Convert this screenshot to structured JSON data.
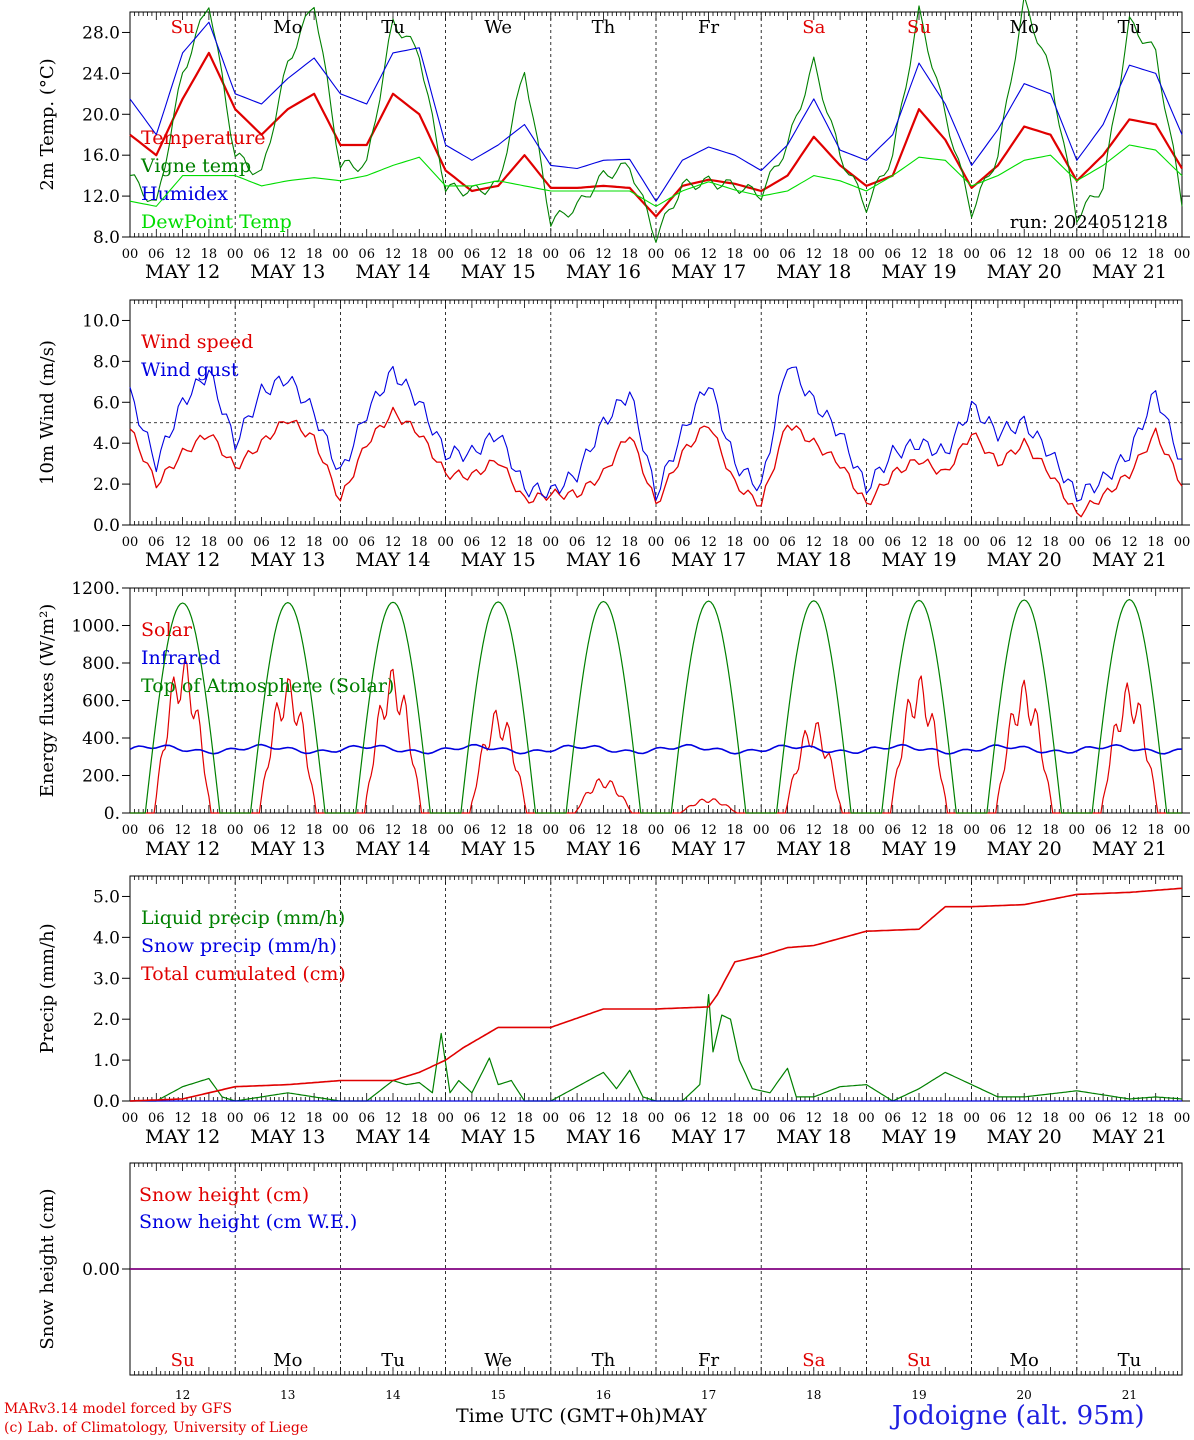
{
  "colors": {
    "red": "#e00000",
    "green": "#008000",
    "blue": "#0000e0",
    "lightgreen": "#00dd00",
    "purple": "#800080",
    "black": "#000000"
  },
  "days": [
    "MAY 12",
    "MAY 13",
    "MAY 14",
    "MAY 15",
    "MAY 16",
    "MAY 17",
    "MAY 18",
    "MAY 19",
    "MAY 20",
    "MAY 21"
  ],
  "weekdays": [
    "Su",
    "Mo",
    "Tu",
    "We",
    "Th",
    "Fr",
    "Sa",
    "Su",
    "Mo",
    "Tu"
  ],
  "weekday_red": [
    true,
    false,
    false,
    false,
    false,
    false,
    true,
    true,
    false,
    false
  ],
  "hour_ticks": [
    "00",
    "06",
    "12",
    "18"
  ],
  "end_tick": "00",
  "day_numbers": [
    "12",
    "13",
    "14",
    "15",
    "16",
    "17",
    "18",
    "19",
    "20",
    "21"
  ],
  "footer": {
    "credit_line1": "MARv3.14 model forced by GFS",
    "credit_line2": "(c) Lab. of Climatology, University of Liege",
    "x_unit": "Time UTC (GMT+0h)MAY",
    "station": "Jodoigne (alt. 95m)"
  },
  "chart_data": [
    {
      "type": "line",
      "ylabel": "2m Temp. (°C)",
      "ylim": [
        8,
        30
      ],
      "yticks": [
        "8.0",
        "12.0",
        "16.0",
        "20.0",
        "24.0",
        "28.0"
      ],
      "run_label": "run: 2024051218",
      "x_hours": [
        0,
        6,
        12,
        18,
        24,
        30,
        36,
        42,
        48,
        54,
        60,
        66,
        72,
        78,
        84,
        90,
        96,
        102,
        108,
        114,
        120,
        126,
        132,
        138,
        144,
        150,
        156,
        162,
        168,
        174,
        180,
        186,
        192,
        198,
        204,
        210,
        216,
        222,
        228,
        234,
        240
      ],
      "series": [
        {
          "name": "Temperature",
          "color": "red",
          "width": 2.2,
          "values": [
            18,
            16,
            21.5,
            26,
            20.5,
            18,
            20.5,
            22,
            17,
            17,
            22,
            20,
            14.5,
            12.5,
            13,
            16,
            12.8,
            12.8,
            13,
            12.8,
            10,
            13,
            13.6,
            13.2,
            12.5,
            14,
            17.8,
            15,
            13,
            14,
            20.5,
            17.5,
            12.8,
            15,
            18.8,
            18,
            13.5,
            16,
            19.5,
            19,
            14.7
          ]
        },
        {
          "name": "Vigne temp",
          "color": "green",
          "width": 1.1,
          "values": [
            14,
            11,
            24,
            31,
            16,
            14,
            25,
            31,
            15,
            15,
            29,
            26,
            12.8,
            12.5,
            13,
            24.5,
            9.5,
            11,
            14,
            15,
            8,
            13,
            13.4,
            13,
            12.2,
            17,
            25,
            16,
            11,
            16,
            30,
            20,
            10.5,
            16,
            31,
            24,
            10,
            13,
            29,
            26,
            11.5
          ]
        },
        {
          "name": "Humidex",
          "color": "blue",
          "width": 1.1,
          "values": [
            21.5,
            18,
            26,
            29,
            22,
            21,
            23.5,
            25.5,
            22,
            21,
            26,
            26.5,
            17,
            15.5,
            17,
            19,
            15,
            14.7,
            15.5,
            15.6,
            11.5,
            15.5,
            16.8,
            16,
            14.5,
            17,
            21.5,
            16.5,
            15.5,
            18,
            25,
            21,
            15,
            18.5,
            23,
            22,
            15.5,
            19,
            24.8,
            24,
            18
          ]
        },
        {
          "name": "DewPoint Temp",
          "color": "lightgreen",
          "width": 1.1,
          "values": [
            11.5,
            11,
            14,
            14,
            14,
            13,
            13.5,
            13.8,
            13.5,
            14,
            15,
            15.8,
            13,
            13,
            13.5,
            13,
            12.5,
            12.5,
            12.5,
            12.5,
            11,
            12.5,
            13.4,
            12.6,
            12,
            12.5,
            14,
            13.5,
            12.5,
            14,
            15.8,
            15.5,
            13,
            14,
            15.5,
            16,
            13.5,
            15,
            17,
            16.5,
            14
          ]
        }
      ]
    },
    {
      "type": "line",
      "ylabel": "10m Wind (m/s)",
      "ylim": [
        0,
        11
      ],
      "yticks": [
        "0.0",
        "2.0",
        "4.0",
        "6.0",
        "8.0",
        "10.0"
      ],
      "reference_line": 5,
      "x_hours": [
        0,
        6,
        12,
        18,
        24,
        30,
        36,
        42,
        48,
        54,
        60,
        66,
        72,
        78,
        84,
        90,
        96,
        102,
        108,
        114,
        120,
        126,
        132,
        138,
        144,
        150,
        156,
        162,
        168,
        174,
        180,
        186,
        192,
        198,
        204,
        210,
        216,
        222,
        228,
        234,
        240
      ],
      "series": [
        {
          "name": "Wind speed",
          "color": "red",
          "width": 1.3,
          "values": [
            4.7,
            2,
            3.5,
            4.5,
            2.8,
            4,
            5.2,
            4.2,
            1.2,
            4,
            5.5,
            4.5,
            2.5,
            2.4,
            3.2,
            1.2,
            1.5,
            1.5,
            2.5,
            4.5,
            1,
            3.5,
            5,
            2,
            1,
            5,
            4,
            3,
            1,
            2.5,
            3.2,
            2.5,
            4.5,
            3,
            4,
            2.5,
            0.5,
            1.4,
            2.5,
            4.5,
            2
          ]
        },
        {
          "name": "Wind gust",
          "color": "blue",
          "width": 1.1,
          "values": [
            6.4,
            3,
            6,
            7.5,
            4,
            6.5,
            7.2,
            5.5,
            2.5,
            5.5,
            7.5,
            6,
            3.5,
            3.5,
            4.5,
            1.8,
            1.6,
            2.5,
            5,
            6.5,
            1.5,
            4.5,
            7,
            3,
            1.8,
            8,
            6,
            4.5,
            1.8,
            3.5,
            4,
            3.5,
            5.8,
            4.5,
            5,
            3.5,
            1.4,
            2.2,
            3.5,
            6.5,
            3
          ]
        }
      ]
    },
    {
      "type": "line",
      "ylabel": "Energy fluxes (W/m²)",
      "ylim": [
        0,
        1200
      ],
      "yticks": [
        "0.",
        "200.",
        "400.",
        "600.",
        "800.",
        "1000.",
        "1200."
      ],
      "peak_hour": 12,
      "series": [
        {
          "name": "Solar",
          "color": "red",
          "daily_peaks": [
            840,
            730,
            780,
            560,
            190,
            80,
            500,
            740,
            710,
            700
          ]
        },
        {
          "name": "Infrared",
          "color": "blue",
          "approx_level": 340,
          "range": [
            300,
            390
          ]
        },
        {
          "name": "Top of Atmosphere (Solar)",
          "color": "green",
          "daily_peaks": [
            1120,
            1122,
            1124,
            1126,
            1128,
            1130,
            1132,
            1134,
            1136,
            1138
          ]
        }
      ]
    },
    {
      "type": "line",
      "ylabel": "Precip (mm/h)",
      "ylim": [
        0,
        5.5
      ],
      "yticks": [
        "0.0",
        "1.0",
        "2.0",
        "3.0",
        "4.0",
        "5.0"
      ],
      "series": [
        {
          "name": "Liquid precip (mm/h)",
          "color": "green",
          "x_hours": [
            0,
            6,
            12,
            15,
            18,
            21,
            24,
            30,
            36,
            42,
            48,
            54,
            60,
            63,
            66,
            69,
            71,
            73,
            75,
            78,
            82,
            84,
            87,
            90,
            96,
            108,
            111,
            114,
            117,
            120,
            126,
            130,
            132,
            133,
            135,
            137,
            139,
            142,
            146,
            150,
            152,
            156,
            162,
            168,
            174,
            180,
            186,
            192,
            198,
            204,
            216,
            228,
            234,
            240
          ],
          "values": [
            0,
            0,
            0.35,
            0.45,
            0.55,
            0.1,
            0,
            0.1,
            0.2,
            0.1,
            0,
            0,
            0.5,
            0.4,
            0.45,
            0.2,
            1.65,
            0.2,
            0.5,
            0.2,
            1.05,
            0.4,
            0.5,
            0,
            0,
            0.7,
            0.3,
            0.75,
            0.1,
            0,
            0,
            0.4,
            2.6,
            1.2,
            2.1,
            2,
            1,
            0.3,
            0.2,
            0.8,
            0.1,
            0.1,
            0.35,
            0.4,
            0,
            0.3,
            0.7,
            0.4,
            0.1,
            0.1,
            0.25,
            0.05,
            0.1,
            0.05
          ]
        },
        {
          "name": "Snow precip (mm/h)",
          "color": "blue",
          "x_hours": [
            0,
            240
          ],
          "values": [
            0,
            0
          ]
        },
        {
          "name": "Total cumulated (cm)",
          "color": "red",
          "x_hours": [
            0,
            12,
            24,
            36,
            48,
            60,
            66,
            72,
            76,
            84,
            96,
            108,
            120,
            132,
            134,
            138,
            144,
            150,
            156,
            168,
            180,
            186,
            192,
            204,
            216,
            228,
            240
          ],
          "values": [
            0,
            0.05,
            0.35,
            0.4,
            0.5,
            0.5,
            0.7,
            1,
            1.3,
            1.8,
            1.8,
            2.25,
            2.25,
            2.3,
            2.6,
            3.4,
            3.55,
            3.75,
            3.8,
            4.15,
            4.2,
            4.75,
            4.75,
            4.8,
            5.05,
            5.1,
            5.2
          ]
        }
      ]
    },
    {
      "type": "line",
      "ylabel": "Snow height (cm)",
      "ylim": [
        -1,
        1
      ],
      "yticks": [
        "0.00"
      ],
      "series": [
        {
          "name": "Snow height (cm)",
          "color": "red",
          "x_hours": [
            0,
            240
          ],
          "values": [
            0,
            0
          ]
        },
        {
          "name": "Snow height (cm W.E.)",
          "color": "blue",
          "x_hours": [
            0,
            240
          ],
          "values": [
            0,
            0
          ]
        }
      ]
    }
  ]
}
